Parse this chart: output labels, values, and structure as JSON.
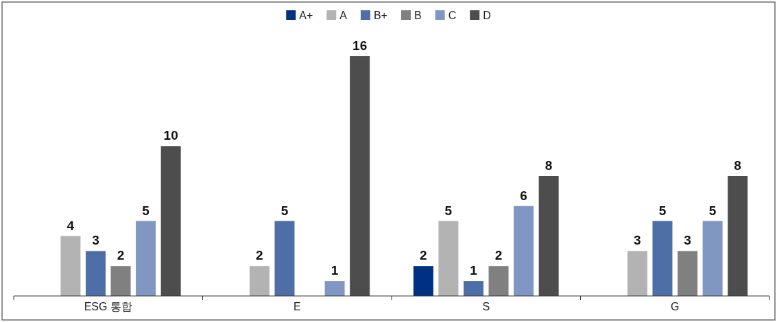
{
  "chart_data": {
    "type": "bar",
    "categories": [
      "ESG 통합",
      "E",
      "S",
      "G"
    ],
    "series": [
      {
        "name": "A+",
        "color": "#003082",
        "values": [
          null,
          null,
          2,
          null
        ]
      },
      {
        "name": "A",
        "color": "#b3b3b3",
        "values": [
          4,
          2,
          5,
          3
        ]
      },
      {
        "name": "B+",
        "color": "#4e6ea8",
        "values": [
          3,
          5,
          1,
          5
        ]
      },
      {
        "name": "B",
        "color": "#808080",
        "values": [
          2,
          null,
          2,
          3
        ]
      },
      {
        "name": "C",
        "color": "#8097c4",
        "values": [
          5,
          1,
          6,
          5
        ]
      },
      {
        "name": "D",
        "color": "#4d4d4d",
        "values": [
          10,
          16,
          8,
          8
        ]
      }
    ],
    "data_labels": true,
    "legend": "top"
  }
}
